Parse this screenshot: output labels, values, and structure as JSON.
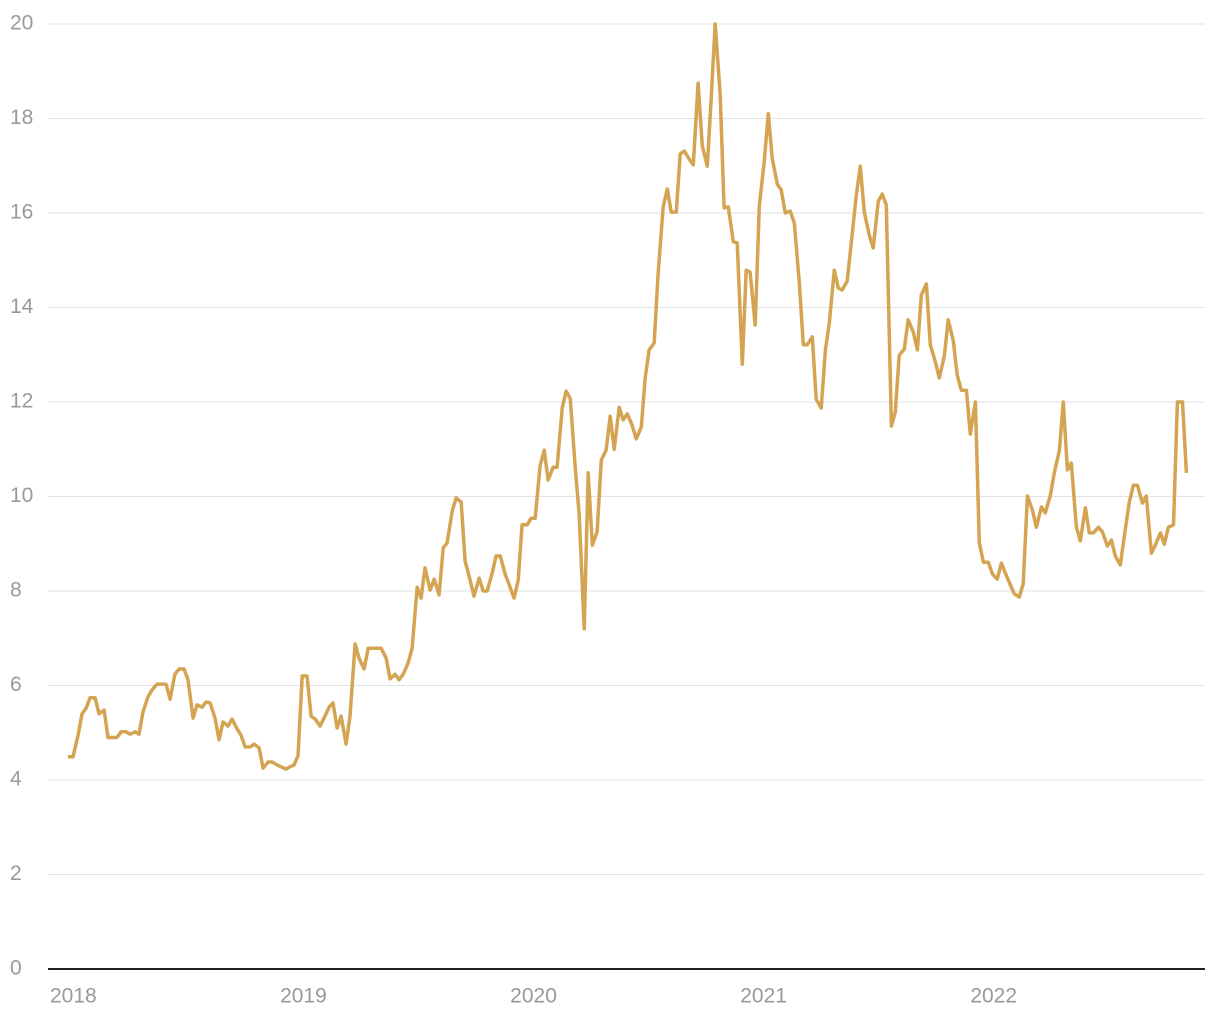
{
  "chart_data": {
    "type": "line",
    "color": "#d4a452",
    "xlim": [
      2018,
      2023.02
    ],
    "xticks": [
      2018,
      2019,
      2020,
      2021,
      2022
    ],
    "ylim": [
      0,
      20
    ],
    "yticks": [
      0,
      2,
      4,
      6,
      8,
      10,
      12,
      14,
      16,
      18,
      20
    ],
    "grid": true,
    "x": [
      2018.078,
      2018.1,
      2018.122,
      2018.139,
      2018.157,
      2018.174,
      2018.196,
      2018.213,
      2018.235,
      2018.252,
      2018.291,
      2018.309,
      2018.33,
      2018.348,
      2018.37,
      2018.387,
      2018.404,
      2018.426,
      2018.443,
      2018.465,
      2018.504,
      2018.522,
      2018.543,
      2018.561,
      2018.583,
      2018.6,
      2018.622,
      2018.639,
      2018.661,
      2018.678,
      2018.696,
      2018.717,
      2018.735,
      2018.752,
      2018.774,
      2018.791,
      2018.813,
      2018.83,
      2018.848,
      2018.87,
      2018.887,
      2018.909,
      2018.926,
      2018.948,
      2018.965,
      2018.987,
      2019.004,
      2019.026,
      2019.043,
      2019.061,
      2019.078,
      2019.096,
      2019.117,
      2019.135,
      2019.152,
      2019.174,
      2019.191,
      2019.213,
      2019.23,
      2019.248,
      2019.265,
      2019.287,
      2019.304,
      2019.326,
      2019.343,
      2019.365,
      2019.383,
      2019.404,
      2019.422,
      2019.439,
      2019.461,
      2019.478,
      2019.5,
      2019.517,
      2019.535,
      2019.557,
      2019.574,
      2019.596,
      2019.613,
      2019.63,
      2019.652,
      2019.67,
      2019.691,
      2019.709,
      2019.726,
      2019.748,
      2019.765,
      2019.787,
      2019.804,
      2019.826,
      2019.843,
      2019.865,
      2019.883,
      2019.9,
      2019.922,
      2019.939,
      2019.957,
      2019.978,
      2019.996,
      2020.017,
      2020.035,
      2020.052,
      2020.074,
      2020.091,
      2020.109,
      2020.13,
      2020.148,
      2020.165,
      2020.187,
      2020.204,
      2020.226,
      2020.243,
      2020.261,
      2020.283,
      2020.3,
      2020.322,
      2020.339,
      2020.357,
      2020.378,
      2020.396,
      2020.417,
      2020.435,
      2020.452,
      2020.474,
      2020.491,
      2020.509,
      2020.53,
      2020.548,
      2020.57,
      2020.587,
      2020.604,
      2020.626,
      2020.643,
      2020.665,
      2020.683,
      2020.7,
      2020.722,
      2020.739,
      2020.757,
      2020.778,
      2020.796,
      2020.817,
      2020.835,
      2020.857,
      2020.874,
      2020.891,
      2020.913,
      2020.93,
      2020.948,
      2020.97,
      2020.987,
      2021.009,
      2021.026,
      2021.043,
      2021.065,
      2021.083,
      2021.104,
      2021.122,
      2021.139,
      2021.161,
      2021.178,
      2021.196,
      2021.217,
      2021.235,
      2021.257,
      2021.274,
      2021.291,
      2021.313,
      2021.33,
      2021.352,
      2021.37,
      2021.387,
      2021.409,
      2021.426,
      2021.443,
      2021.465,
      2021.483,
      2021.504,
      2021.522,
      2021.539,
      2021.561,
      2021.578,
      2021.6,
      2021.617,
      2021.635,
      2021.657,
      2021.674,
      2021.691,
      2021.713,
      2021.73,
      2021.752,
      2021.77,
      2021.787,
      2021.809,
      2021.826,
      2021.848,
      2021.865,
      2021.887,
      2021.904,
      2021.926,
      2021.943,
      2021.961,
      2021.983,
      2022.0,
      2022.022,
      2022.039,
      2022.057,
      2022.078,
      2022.096,
      2022.117,
      2022.135,
      2022.152,
      2022.174,
      2022.191,
      2022.213,
      2022.23,
      2022.248,
      2022.27,
      2022.287,
      2022.309,
      2022.326,
      2022.348,
      2022.365,
      2022.387,
      2022.404,
      2022.422,
      2022.439,
      2022.461,
      2022.478,
      2022.5,
      2022.517,
      2022.535,
      2022.557,
      2022.574,
      2022.596,
      2022.613,
      2022.63,
      2022.652,
      2022.67,
      2022.691,
      2022.709,
      2022.726,
      2022.748,
      2022.765,
      2022.787,
      2022.804,
      2022.826,
      2022.843,
      2022.861,
      2022.883,
      2022.9,
      2022.922,
      2022.939
    ],
    "values": [
      4.49,
      4.49,
      4.95,
      5.4,
      5.52,
      5.74,
      5.74,
      5.4,
      5.48,
      4.9,
      4.9,
      5.02,
      5.02,
      4.97,
      5.02,
      4.97,
      5.44,
      5.76,
      5.9,
      6.03,
      6.03,
      5.71,
      6.24,
      6.35,
      6.35,
      6.12,
      5.31,
      5.59,
      5.54,
      5.65,
      5.63,
      5.31,
      4.85,
      5.23,
      5.14,
      5.29,
      5.08,
      4.95,
      4.7,
      4.7,
      4.76,
      4.68,
      4.25,
      4.38,
      4.38,
      4.32,
      4.28,
      4.23,
      4.28,
      4.32,
      4.51,
      6.2,
      6.2,
      5.35,
      5.29,
      5.14,
      5.31,
      5.54,
      5.63,
      5.1,
      5.35,
      4.76,
      5.35,
      6.88,
      6.58,
      6.35,
      6.79,
      6.79,
      6.79,
      6.79,
      6.58,
      6.14,
      6.24,
      6.12,
      6.24,
      6.48,
      6.79,
      8.08,
      7.85,
      8.49,
      8.02,
      8.25,
      7.92,
      8.91,
      9.02,
      9.69,
      9.97,
      9.88,
      8.63,
      8.23,
      7.89,
      8.27,
      8.0,
      8.0,
      8.38,
      8.74,
      8.74,
      8.36,
      8.13,
      7.85,
      8.23,
      9.4,
      9.4,
      9.54,
      9.54,
      10.65,
      10.98,
      10.35,
      10.62,
      10.62,
      11.87,
      12.23,
      12.08,
      10.6,
      9.61,
      7.2,
      10.5,
      8.97,
      9.25,
      10.77,
      10.98,
      11.7,
      11.0,
      11.89,
      11.62,
      11.75,
      11.51,
      11.22,
      11.47,
      12.51,
      13.1,
      13.25,
      14.71,
      16.13,
      16.51,
      16.02,
      16.02,
      17.25,
      17.31,
      17.14,
      17.02,
      18.75,
      17.42,
      16.99,
      18.43,
      20.0,
      18.5,
      16.11,
      16.13,
      15.39,
      15.37,
      12.8,
      14.79,
      14.75,
      13.63,
      16.15,
      17.08,
      18.1,
      17.16,
      16.61,
      16.49,
      16.0,
      16.04,
      15.79,
      14.5,
      13.21,
      13.21,
      13.38,
      12.06,
      11.87,
      13.1,
      13.67,
      14.79,
      14.41,
      14.37,
      14.56,
      15.39,
      16.36,
      16.99,
      16.02,
      15.53,
      15.26,
      16.25,
      16.4,
      16.17,
      11.49,
      11.79,
      12.99,
      13.12,
      13.74,
      13.48,
      13.1,
      14.26,
      14.5,
      13.21,
      12.85,
      12.51,
      12.97,
      13.74,
      13.29,
      12.57,
      12.25,
      12.25,
      11.32,
      12.0,
      9.02,
      8.61,
      8.61,
      8.36,
      8.25,
      8.59,
      8.38,
      8.13,
      7.94,
      7.87,
      8.15,
      10.01,
      9.71,
      9.35,
      9.78,
      9.65,
      10.03,
      10.5,
      10.98,
      12.0,
      10.56,
      10.71,
      9.35,
      9.06,
      9.76,
      9.23,
      9.23,
      9.35,
      9.25,
      8.95,
      9.08,
      8.74,
      8.55,
      9.19,
      9.88,
      10.24,
      10.24,
      9.86,
      10.01,
      8.8,
      8.97,
      9.23,
      8.99,
      9.35,
      9.4,
      12.0,
      12.0,
      10.5
    ]
  }
}
